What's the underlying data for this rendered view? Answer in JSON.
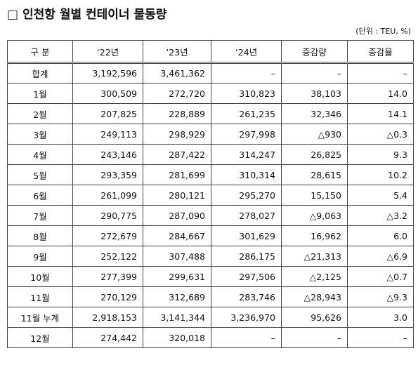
{
  "header": {
    "title": "□ 인천항 월별 컨테이너 물동량",
    "unit": "(단위 : TEU, %)"
  },
  "table": {
    "columns": [
      "구 분",
      "‘22년",
      "‘23년",
      "‘24년",
      "증감량",
      "증감율"
    ],
    "rows": [
      [
        "합계",
        "3,192,596",
        "3,461,362",
        "–",
        "–",
        "–"
      ],
      [
        "1월",
        "300,509",
        "272,720",
        "310,823",
        "38,103",
        "14.0"
      ],
      [
        "2월",
        "207,825",
        "228,889",
        "261,235",
        "32,346",
        "14.1"
      ],
      [
        "3월",
        "249,113",
        "298,929",
        "297,998",
        "△930",
        "△0.3"
      ],
      [
        "4월",
        "243,146",
        "287,422",
        "314,247",
        "26,825",
        "9.3"
      ],
      [
        "5월",
        "293,359",
        "281,699",
        "310,314",
        "28,615",
        "10.2"
      ],
      [
        "6월",
        "261,099",
        "280,121",
        "295,270",
        "15,150",
        "5.4"
      ],
      [
        "7월",
        "290,775",
        "287,090",
        "278,027",
        "△9,063",
        "△3.2"
      ],
      [
        "8월",
        "272,679",
        "284,667",
        "301,629",
        "16,962",
        "6.0"
      ],
      [
        "9월",
        "252,122",
        "307,488",
        "286,175",
        "△21,313",
        "△6.9"
      ],
      [
        "10월",
        "277,399",
        "299,631",
        "297,506",
        "△2,125",
        "△0.7"
      ],
      [
        "11월",
        "270,129",
        "312,689",
        "283,746",
        "△28,943",
        "△9.3"
      ],
      [
        "11월 누계",
        "2,918,153",
        "3,141,344",
        "3,236,970",
        "95,626",
        "3.0"
      ],
      [
        "12월",
        "274,442",
        "320,018",
        "–",
        "–",
        "–"
      ]
    ]
  }
}
